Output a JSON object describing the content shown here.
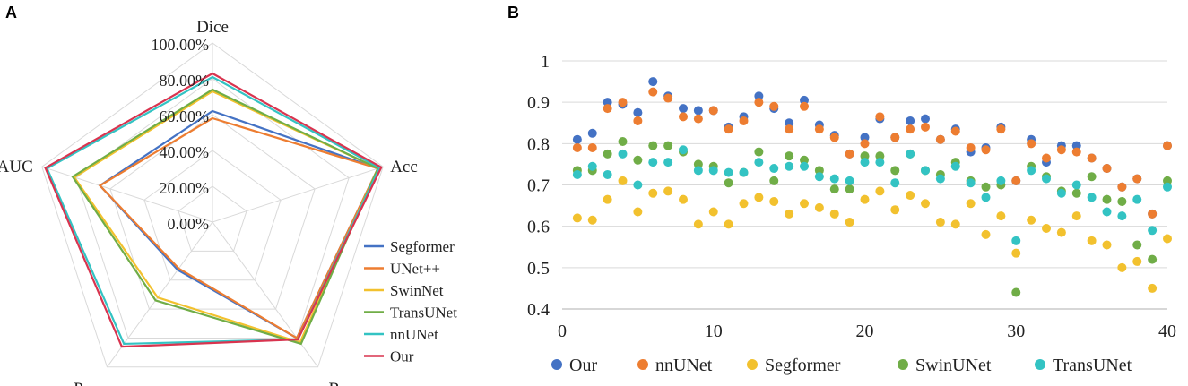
{
  "panels": {
    "a": "A",
    "b": "B"
  },
  "chart_data": [
    {
      "type": "radar",
      "axes": [
        "Dice",
        "Acc",
        "Rec",
        "Pre",
        "AUC"
      ],
      "radial_range": [
        0,
        1
      ],
      "radial_ticks": [
        "0.00%",
        "20.00%",
        "40.00%",
        "60.00%",
        "80.00%",
        "100.00%"
      ],
      "series": [
        {
          "name": "Segformer",
          "color": "#4472c4",
          "values": [
            0.62,
            0.97,
            0.8,
            0.33,
            0.66
          ]
        },
        {
          "name": "UNet++",
          "color": "#ed7d31",
          "values": [
            0.58,
            0.97,
            0.8,
            0.32,
            0.66
          ]
        },
        {
          "name": "SwinNet",
          "color": "#f2c12e",
          "values": [
            0.73,
            0.97,
            0.83,
            0.52,
            0.81
          ]
        },
        {
          "name": "TransUNet",
          "color": "#70ad47",
          "values": [
            0.74,
            0.97,
            0.84,
            0.54,
            0.82
          ]
        },
        {
          "name": "nnUNet",
          "color": "#33c3c3",
          "values": [
            0.81,
            0.98,
            0.81,
            0.84,
            0.97
          ]
        },
        {
          "name": "Our",
          "color": "#d9344f",
          "values": [
            0.83,
            0.99,
            0.81,
            0.86,
            0.98
          ]
        }
      ],
      "legend_position": "right"
    },
    {
      "type": "scatter",
      "xlim": [
        0,
        40
      ],
      "ylim": [
        0.4,
        1
      ],
      "xticks": [
        0,
        10,
        20,
        30,
        40
      ],
      "yticks": [
        0.4,
        0.5,
        0.6,
        0.7,
        0.8,
        0.9,
        1
      ],
      "ytick_labels": [
        "0.4",
        "0.5",
        "0.6",
        "0.7",
        "0.8",
        "0.9",
        "1"
      ],
      "grid": true,
      "x": [
        1,
        2,
        3,
        4,
        5,
        6,
        7,
        8,
        9,
        10,
        11,
        12,
        13,
        14,
        15,
        16,
        17,
        18,
        19,
        20,
        21,
        22,
        23,
        24,
        25,
        26,
        27,
        28,
        29,
        30,
        31,
        32,
        33,
        34,
        35,
        36,
        37,
        38,
        39,
        40
      ],
      "series": [
        {
          "name": "Our",
          "color": "#4472c4",
          "values": [
            0.81,
            0.825,
            0.9,
            0.895,
            0.875,
            0.95,
            0.915,
            0.885,
            0.88,
            0.88,
            0.84,
            0.865,
            0.915,
            0.885,
            0.85,
            0.905,
            0.845,
            0.82,
            0.775,
            0.815,
            0.86,
            0.815,
            0.855,
            0.86,
            0.81,
            0.835,
            0.78,
            0.79,
            0.84,
            0.71,
            0.81,
            0.755,
            0.795,
            0.795,
            0.765,
            0.74,
            0.695,
            0.715,
            0.63,
            0.795
          ]
        },
        {
          "name": "nnUNet",
          "color": "#ed7d31",
          "values": [
            0.79,
            0.79,
            0.885,
            0.9,
            0.855,
            0.925,
            0.91,
            0.865,
            0.86,
            0.88,
            0.835,
            0.855,
            0.9,
            0.89,
            0.835,
            0.89,
            0.835,
            0.815,
            0.775,
            0.8,
            0.865,
            0.815,
            0.835,
            0.84,
            0.81,
            0.83,
            0.79,
            0.785,
            0.835,
            0.71,
            0.8,
            0.765,
            0.785,
            0.78,
            0.765,
            0.74,
            0.695,
            0.715,
            0.63,
            0.795
          ]
        },
        {
          "name": "Segformer",
          "color": "#f2c12e",
          "values": [
            0.62,
            0.615,
            0.665,
            0.71,
            0.635,
            0.68,
            0.685,
            0.665,
            0.605,
            0.635,
            0.605,
            0.655,
            0.67,
            0.66,
            0.63,
            0.655,
            0.645,
            0.63,
            0.61,
            0.665,
            0.685,
            0.64,
            0.675,
            0.655,
            0.61,
            0.605,
            0.655,
            0.58,
            0.625,
            0.535,
            0.615,
            0.595,
            0.585,
            0.625,
            0.565,
            0.555,
            0.5,
            0.515,
            0.45,
            0.57
          ]
        },
        {
          "name": "SwinUNet",
          "color": "#70ad47",
          "values": [
            0.735,
            0.735,
            0.775,
            0.805,
            0.76,
            0.795,
            0.795,
            0.78,
            0.75,
            0.745,
            0.705,
            0.73,
            0.78,
            0.71,
            0.77,
            0.76,
            0.735,
            0.69,
            0.69,
            0.77,
            0.77,
            0.735,
            0.775,
            0.735,
            0.725,
            0.755,
            0.71,
            0.695,
            0.7,
            0.44,
            0.745,
            0.72,
            0.685,
            0.68,
            0.72,
            0.665,
            0.66,
            0.555,
            0.52,
            0.71
          ]
        },
        {
          "name": "TransUNet",
          "color": "#33c3c3",
          "values": [
            0.725,
            0.745,
            0.725,
            0.775,
            0.7,
            0.755,
            0.755,
            0.785,
            0.735,
            0.735,
            0.73,
            0.73,
            0.755,
            0.74,
            0.745,
            0.745,
            0.72,
            0.715,
            0.71,
            0.755,
            0.755,
            0.705,
            0.775,
            0.735,
            0.715,
            0.745,
            0.705,
            0.67,
            0.71,
            0.565,
            0.735,
            0.715,
            0.68,
            0.7,
            0.67,
            0.635,
            0.625,
            0.665,
            0.59,
            0.695
          ]
        }
      ],
      "legend_position": "bottom"
    }
  ]
}
